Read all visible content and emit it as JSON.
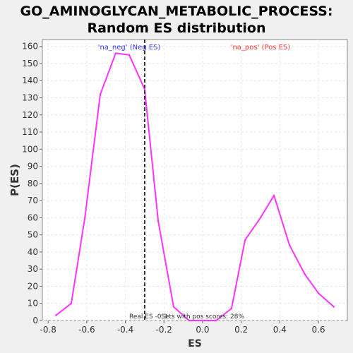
{
  "chart_data": {
    "type": "line",
    "title_line1": "GO_AMINOGLYCAN_METABOLIC_PROCESS:",
    "title_line2": "Random ES distribution",
    "xlabel": "ES",
    "ylabel": "P(ES)",
    "xlim": [
      -0.83,
      0.75
    ],
    "ylim": [
      0,
      164
    ],
    "x_ticks": [
      -0.8,
      -0.6,
      -0.4,
      -0.2,
      0.0,
      0.2,
      0.4,
      0.6
    ],
    "x_tick_labels": [
      "-0.8",
      "-0.6",
      "-0.4",
      "-0.2",
      "0.0",
      "0.2",
      "0.4",
      "0.6"
    ],
    "y_ticks": [
      0,
      10,
      20,
      30,
      40,
      50,
      60,
      70,
      80,
      90,
      100,
      110,
      120,
      130,
      140,
      150,
      160
    ],
    "y_tick_labels": [
      "0",
      "10",
      "20",
      "30",
      "40",
      "50",
      "60",
      "70",
      "80",
      "90",
      "100",
      "110",
      "120",
      "130",
      "140",
      "150",
      "160"
    ],
    "grid": true,
    "series": [
      {
        "color": "#ff33ff",
        "x": [
          -0.76,
          -0.68,
          -0.61,
          -0.53,
          -0.45,
          -0.38,
          -0.3,
          -0.23,
          -0.15,
          -0.07,
          0.0,
          0.07,
          0.15,
          0.22,
          0.3,
          0.37,
          0.45,
          0.53,
          0.6,
          0.68
        ],
        "y": [
          3,
          10,
          60,
          132,
          156,
          155,
          135,
          58,
          8,
          0,
          0,
          0,
          7,
          47,
          60,
          73,
          44,
          27,
          16,
          8
        ]
      }
    ],
    "real_es": -0.3,
    "annotations": {
      "neg_label": "'na_neg' (Neg ES)",
      "pos_label": "'na_pos' (Pos ES)",
      "real_es_label": "Real ES -0.3",
      "pos_scores_label": "Sets with pos scores: 28%"
    },
    "colors": {
      "neg_label": "#3333ff",
      "pos_label": "#ff3333",
      "real_es_line": "#333333"
    }
  }
}
